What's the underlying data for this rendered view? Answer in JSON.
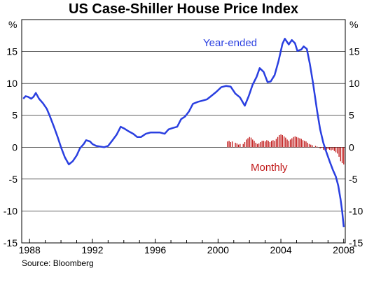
{
  "chart_data": {
    "type": "line",
    "title": "US Case-Shiller House Price Index",
    "unit_left": "%",
    "unit_right": "%",
    "source": "Source: Bloomberg",
    "xlim": [
      1987.5,
      2008.1
    ],
    "ylim": [
      -15,
      20
    ],
    "yticks": [
      15,
      10,
      5,
      0,
      -5,
      -10,
      -15
    ],
    "xticks": [
      1988,
      1992,
      1996,
      2000,
      2004,
      2008
    ],
    "colors": {
      "year_ended": "#2a3fe0",
      "monthly": "#c01818"
    },
    "annotations": {
      "year_ended": "Year-ended",
      "monthly": "Monthly"
    },
    "series": [
      {
        "name": "Year-ended",
        "type": "line",
        "points": [
          [
            1987.6,
            7.6
          ],
          [
            1987.75,
            8.0
          ],
          [
            1987.9,
            7.9
          ],
          [
            1988.1,
            7.6
          ],
          [
            1988.25,
            7.9
          ],
          [
            1988.4,
            8.5
          ],
          [
            1988.6,
            7.6
          ],
          [
            1988.85,
            6.9
          ],
          [
            1989.1,
            6.0
          ],
          [
            1989.3,
            4.8
          ],
          [
            1989.55,
            3.2
          ],
          [
            1989.8,
            1.5
          ],
          [
            1990.0,
            0.0
          ],
          [
            1990.25,
            -1.6
          ],
          [
            1990.5,
            -2.7
          ],
          [
            1990.75,
            -2.2
          ],
          [
            1991.0,
            -1.3
          ],
          [
            1991.2,
            -0.2
          ],
          [
            1991.45,
            0.5
          ],
          [
            1991.6,
            1.1
          ],
          [
            1991.85,
            0.9
          ],
          [
            1992.0,
            0.5
          ],
          [
            1992.25,
            0.2
          ],
          [
            1992.5,
            0.1
          ],
          [
            1992.75,
            0.0
          ],
          [
            1993.0,
            0.2
          ],
          [
            1993.25,
            1.0
          ],
          [
            1993.55,
            2.0
          ],
          [
            1993.8,
            3.2
          ],
          [
            1994.05,
            2.9
          ],
          [
            1994.3,
            2.5
          ],
          [
            1994.6,
            2.1
          ],
          [
            1994.85,
            1.6
          ],
          [
            1995.1,
            1.6
          ],
          [
            1995.4,
            2.1
          ],
          [
            1995.7,
            2.3
          ],
          [
            1996.0,
            2.3
          ],
          [
            1996.3,
            2.3
          ],
          [
            1996.6,
            2.1
          ],
          [
            1996.85,
            2.8
          ],
          [
            1997.1,
            3.0
          ],
          [
            1997.4,
            3.2
          ],
          [
            1997.65,
            4.4
          ],
          [
            1997.9,
            4.8
          ],
          [
            1998.15,
            5.6
          ],
          [
            1998.4,
            6.8
          ],
          [
            1998.7,
            7.1
          ],
          [
            1999.0,
            7.3
          ],
          [
            1999.3,
            7.5
          ],
          [
            1999.6,
            8.1
          ],
          [
            1999.9,
            8.7
          ],
          [
            2000.2,
            9.4
          ],
          [
            2000.5,
            9.6
          ],
          [
            2000.8,
            9.5
          ],
          [
            2001.1,
            8.4
          ],
          [
            2001.4,
            7.8
          ],
          [
            2001.7,
            6.5
          ],
          [
            2001.95,
            8.0
          ],
          [
            2002.2,
            9.8
          ],
          [
            2002.45,
            11.0
          ],
          [
            2002.65,
            12.4
          ],
          [
            2002.9,
            11.8
          ],
          [
            2003.15,
            10.2
          ],
          [
            2003.35,
            10.3
          ],
          [
            2003.6,
            11.3
          ],
          [
            2003.85,
            13.5
          ],
          [
            2004.1,
            16.2
          ],
          [
            2004.25,
            17.0
          ],
          [
            2004.5,
            16.1
          ],
          [
            2004.7,
            16.8
          ],
          [
            2004.9,
            16.3
          ],
          [
            2005.05,
            15.1
          ],
          [
            2005.3,
            15.3
          ],
          [
            2005.45,
            15.8
          ],
          [
            2005.65,
            15.4
          ],
          [
            2005.85,
            13.0
          ],
          [
            2006.05,
            10.0
          ],
          [
            2006.3,
            5.8
          ],
          [
            2006.5,
            2.8
          ],
          [
            2006.7,
            0.7
          ],
          [
            2006.9,
            -0.8
          ],
          [
            2007.1,
            -2.2
          ],
          [
            2007.3,
            -3.5
          ],
          [
            2007.5,
            -4.6
          ],
          [
            2007.65,
            -6.0
          ],
          [
            2007.8,
            -8.2
          ],
          [
            2007.9,
            -10.0
          ],
          [
            2008.0,
            -12.5
          ]
        ]
      },
      {
        "name": "Monthly",
        "type": "bar",
        "points": [
          [
            2000.6,
            0.9
          ],
          [
            2000.7,
            1.0
          ],
          [
            2000.8,
            0.8
          ],
          [
            2000.9,
            0.9
          ],
          [
            2001.1,
            0.7
          ],
          [
            2001.2,
            0.6
          ],
          [
            2001.3,
            0.4
          ],
          [
            2001.4,
            0.5
          ],
          [
            2001.6,
            0.5
          ],
          [
            2001.7,
            0.8
          ],
          [
            2001.8,
            1.2
          ],
          [
            2001.9,
            1.4
          ],
          [
            2002.0,
            1.6
          ],
          [
            2002.1,
            1.5
          ],
          [
            2002.2,
            1.2
          ],
          [
            2002.3,
            1.0
          ],
          [
            2002.4,
            0.7
          ],
          [
            2002.5,
            0.5
          ],
          [
            2002.6,
            0.6
          ],
          [
            2002.7,
            0.8
          ],
          [
            2002.8,
            1.0
          ],
          [
            2002.9,
            1.0
          ],
          [
            2003.0,
            0.9
          ],
          [
            2003.1,
            1.1
          ],
          [
            2003.2,
            1.0
          ],
          [
            2003.3,
            0.8
          ],
          [
            2003.4,
            1.0
          ],
          [
            2003.5,
            1.1
          ],
          [
            2003.6,
            1.0
          ],
          [
            2003.7,
            1.3
          ],
          [
            2003.8,
            1.6
          ],
          [
            2003.9,
            1.9
          ],
          [
            2004.0,
            2.0
          ],
          [
            2004.1,
            1.9
          ],
          [
            2004.2,
            1.7
          ],
          [
            2004.3,
            1.5
          ],
          [
            2004.4,
            1.2
          ],
          [
            2004.5,
            1.0
          ],
          [
            2004.6,
            1.2
          ],
          [
            2004.7,
            1.4
          ],
          [
            2004.8,
            1.6
          ],
          [
            2004.9,
            1.7
          ],
          [
            2005.0,
            1.6
          ],
          [
            2005.1,
            1.5
          ],
          [
            2005.2,
            1.4
          ],
          [
            2005.3,
            1.3
          ],
          [
            2005.4,
            1.1
          ],
          [
            2005.5,
            1.0
          ],
          [
            2005.6,
            0.9
          ],
          [
            2005.7,
            0.7
          ],
          [
            2005.8,
            0.5
          ],
          [
            2005.9,
            0.4
          ],
          [
            2006.0,
            0.3
          ],
          [
            2006.2,
            0.2
          ],
          [
            2006.3,
            0.1
          ],
          [
            2006.5,
            -0.2
          ],
          [
            2006.6,
            -0.1
          ],
          [
            2006.7,
            -0.4
          ],
          [
            2006.8,
            -0.5
          ],
          [
            2006.9,
            -0.4
          ],
          [
            2007.0,
            -0.3
          ],
          [
            2007.1,
            -0.4
          ],
          [
            2007.2,
            -0.5
          ],
          [
            2007.3,
            -0.4
          ],
          [
            2007.4,
            -0.6
          ],
          [
            2007.5,
            -0.8
          ],
          [
            2007.6,
            -1.0
          ],
          [
            2007.7,
            -1.5
          ],
          [
            2007.8,
            -2.2
          ],
          [
            2007.9,
            -2.5
          ],
          [
            2008.0,
            -2.7
          ]
        ]
      }
    ]
  }
}
